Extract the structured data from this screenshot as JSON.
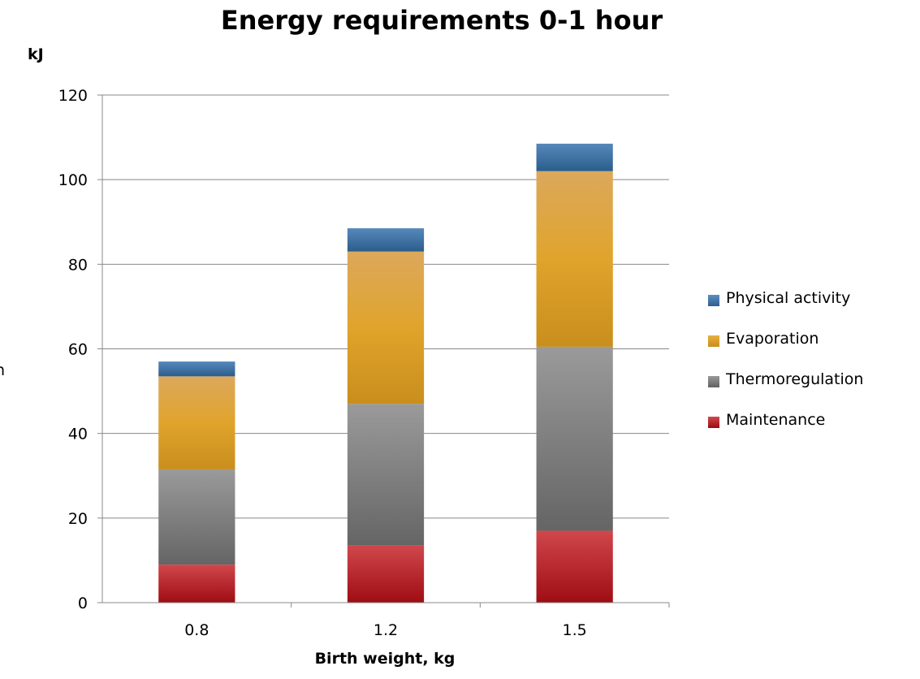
{
  "chart_data": {
    "type": "bar",
    "stacked": true,
    "title": "Energy requirements 0-1 hour",
    "ylabel": "kJ",
    "xlabel": "Birth weight, kg",
    "categories": [
      "0.8",
      "1.2",
      "1.5"
    ],
    "ylim": [
      0,
      120
    ],
    "yticks": [
      "0",
      "20",
      "40",
      "60",
      "80",
      "100",
      "120"
    ],
    "ytick_values": [
      0,
      20,
      40,
      60,
      80,
      100,
      120
    ],
    "grid": true,
    "legend_position": "right",
    "series": [
      {
        "name": "Maintenance",
        "values": [
          9,
          13.5,
          17
        ],
        "color": "#a81419"
      },
      {
        "name": "Thermoregulation",
        "values": [
          22.5,
          33.5,
          43.5
        ],
        "color": "#787878"
      },
      {
        "name": "Evaporation",
        "values": [
          22,
          36,
          41.5
        ],
        "color": "#dba030"
      },
      {
        "name": "Physical activity",
        "values": [
          3.5,
          5.5,
          6.5
        ],
        "color": "#3a6f9e"
      }
    ],
    "clipped_text": "n"
  }
}
